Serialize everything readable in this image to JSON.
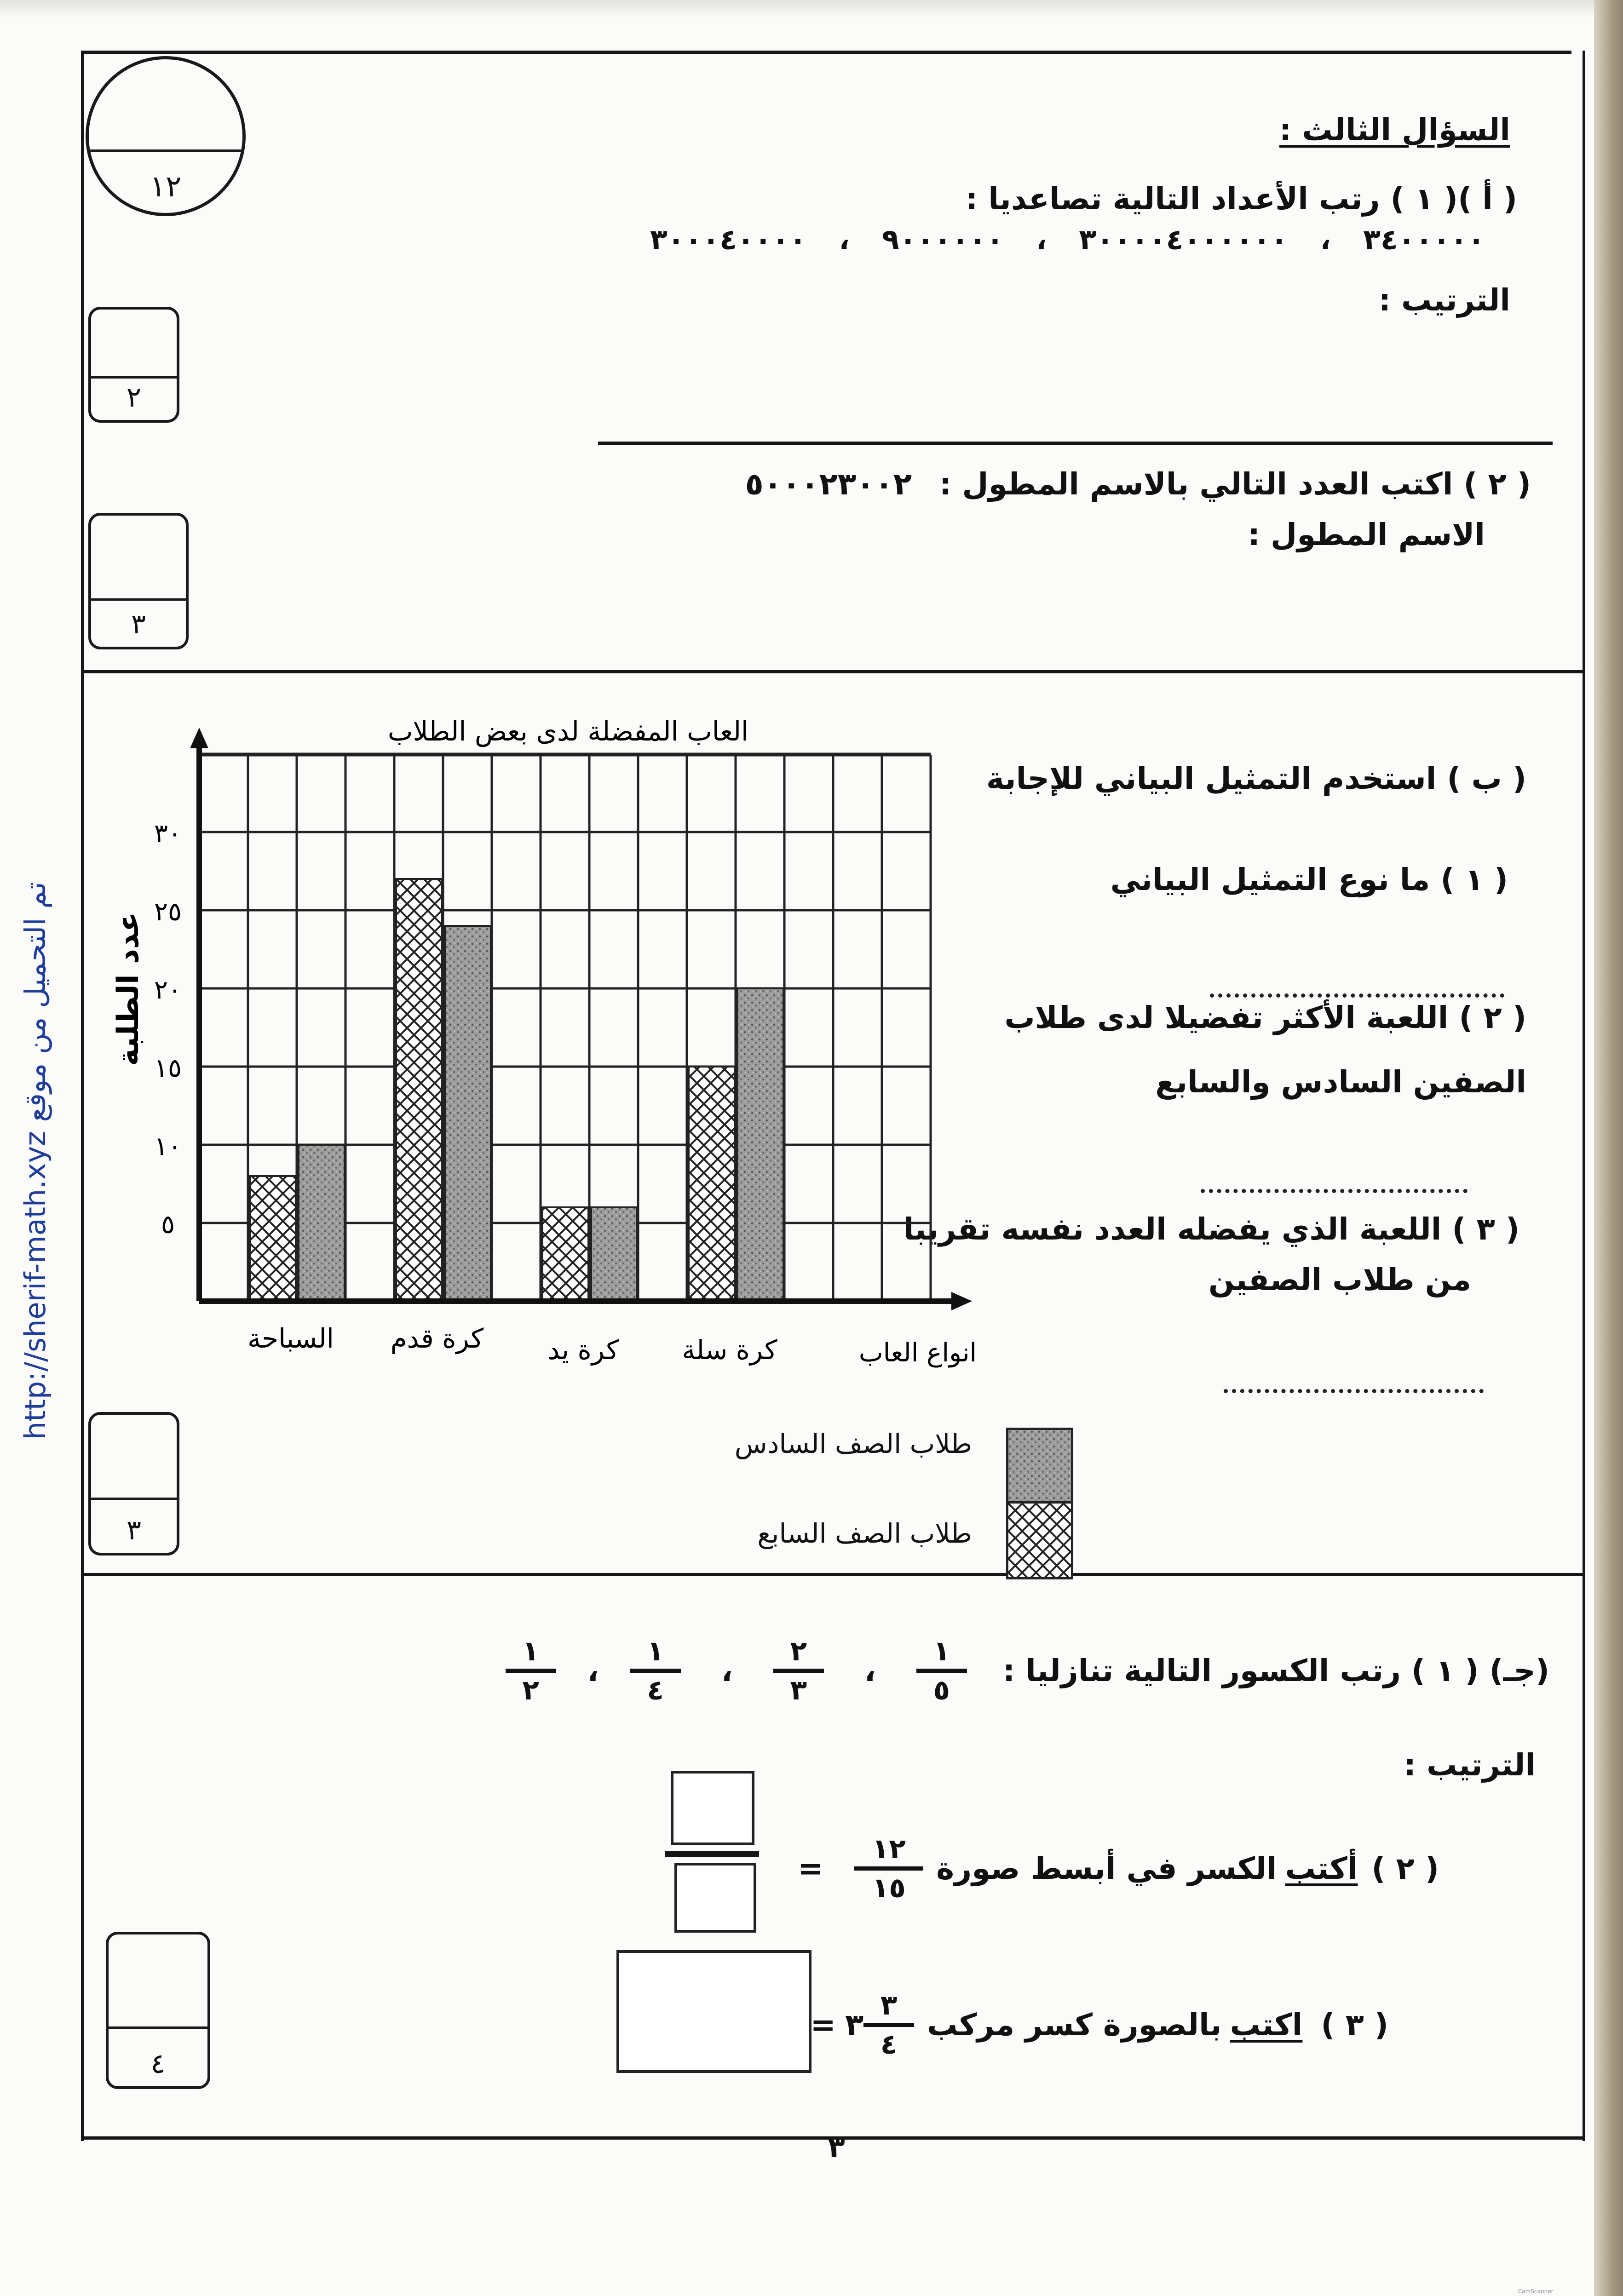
{
  "question": {
    "title": "السؤال الثالث :",
    "total_score": "١٢"
  },
  "part_a": {
    "q1_label": "( أ )( ١ )  رتب الأعداد  التالية تصاعديا :",
    "numbers": [
      "٣٤٠٠٠٠٠",
      "٣٠٠٠٠٤٠٠٠٠٠٠",
      "٩٠٠٠٠٠٠",
      "٣٠٠٠٤٠٠٠٠"
    ],
    "separator": "،",
    "ordering_label": "الترتيب :",
    "q1_score": "٢",
    "q2_label": "( ٢ ) اكتب العدد التالي بالاسم  المطول :",
    "q2_number": "٥٠٠٠٢٣٠٠٢",
    "long_name_label": "الاسم المطول :",
    "q2_score": "٣"
  },
  "part_b": {
    "intro": "( ب ) استخدم التمثيل البياني للإجابة",
    "q1": "( ١ )  ما نوع التمثيل البياني",
    "q2_line1": "( ٢ ) اللعبة الأكثر تفضيلا لدى طلاب",
    "q2_line2": "الصفين السادس والسابع",
    "q3_line1": "( ٣ ) اللعبة  الذي يفضله العدد نفسه تقريبا",
    "q3_line2": "من طلاب الصفين",
    "score": "٣"
  },
  "chart_data": {
    "type": "bar",
    "title": "العاب المفضلة لدى بعض الطلاب",
    "xlabel": "انواع العاب",
    "ylabel": "عدد الطلبة",
    "categories": [
      "السباحة",
      "كرة قدم",
      "كرة يد",
      "كرة سلة"
    ],
    "series": [
      {
        "name": "طلاب الصف السابع",
        "pattern": "crosshatch",
        "values": [
          8,
          27,
          6,
          15
        ]
      },
      {
        "name": "طلاب الصف السادس",
        "pattern": "gray-stipple",
        "values": [
          10,
          24,
          6,
          20
        ]
      }
    ],
    "yticks": [
      5,
      10,
      15,
      20,
      25,
      30
    ],
    "ytick_labels": [
      "٥",
      "١٠",
      "١٥",
      "٢٠",
      "٢٥",
      "٣٠"
    ],
    "ylim": [
      0,
      35
    ],
    "grid": true,
    "legend_placement": "bottom"
  },
  "part_c": {
    "q1_label": "(جـ) ( ١ )  رتب الكسور التالية تنازليا :",
    "fractions": [
      {
        "num": "١",
        "den": "٥"
      },
      {
        "num": "٢",
        "den": "٣"
      },
      {
        "num": "١",
        "den": "٤"
      },
      {
        "num": "١",
        "den": "٢"
      }
    ],
    "separator": "،",
    "ordering_label": "الترتيب  :",
    "q2_prefix": "( ٢ )",
    "q2_verb": "أكتب",
    "q2_rest": "الكسر في أبسط صورة",
    "q2_fraction": {
      "num": "١٢",
      "den": "١٥"
    },
    "equals": "=",
    "q3_prefix": "( ٣ )",
    "q3_verb": "اكتب",
    "q3_rest": "بالصورة كسر مركب",
    "q3_mixed": {
      "whole": "٣",
      "num": "٣",
      "den": "٤"
    },
    "score": "٤"
  },
  "page_number": "٣",
  "watermark": "http://sherif-math.xyz  تم التحميل من موقع",
  "scanner_mark": "CamScanner"
}
